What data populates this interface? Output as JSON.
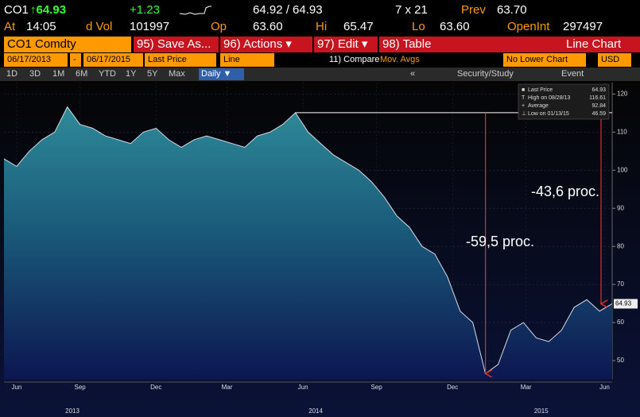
{
  "header": {
    "ticker": "CO1",
    "last": "↑64.93",
    "change": "+1.23",
    "bid_ask": "64.92 / 64.93",
    "size": "7 x 21",
    "prev_label": "Prev",
    "prev": "63.70",
    "at_label": "At",
    "time": "14:05",
    "vol_label": "d Vol",
    "vol": "101997",
    "open_label": "Op",
    "open": "63.60",
    "high_label": "Hi",
    "high": "65.47",
    "low_label": "Lo",
    "low": "63.60",
    "oi_label": "OpenInt",
    "oi": "297497"
  },
  "toolbar": {
    "security": "CO1 Comdty",
    "buttons": [
      "95) Save As...",
      "96) Actions ▾",
      "97) Edit ▾",
      "98) Table"
    ],
    "chart_kind": "Line Chart"
  },
  "settings": {
    "start": "06/17/2013",
    "dash": "-",
    "end": "06/17/2015",
    "field": "Last Price",
    "style": "Line",
    "compare": "11) Compare",
    "mov_avgs": "Mov. Avgs",
    "lower": "No Lower Chart",
    "currency": "USD"
  },
  "ranges": {
    "buttons": [
      "1D",
      "3D",
      "1M",
      "6M",
      "YTD",
      "1Y",
      "5Y",
      "Max"
    ],
    "period": "Daily ▼",
    "collapse": "«",
    "study": "Security/Study",
    "event": "Event"
  },
  "chart_data": {
    "type": "area",
    "x": [
      0.5,
      1,
      1.5,
      2,
      2.5,
      3,
      3.5,
      4,
      4.5,
      5,
      5.5,
      6,
      6.5,
      7,
      7.5,
      8,
      8.5,
      9,
      9.5,
      10,
      10.5,
      11,
      11.5,
      12,
      12.5,
      13,
      13.5,
      14,
      14.5,
      15,
      15.5,
      16,
      16.5,
      17,
      17.5,
      18,
      18.5,
      19,
      19.5,
      20,
      20.5,
      21,
      21.5,
      22,
      22.5,
      23,
      23.5,
      24,
      24.5
    ],
    "series": [
      {
        "name": "Last Price",
        "color": "#3aa0b0",
        "values": [
          103,
          101,
          105,
          108,
          110,
          116.61,
          112,
          111,
          109,
          108,
          107,
          110,
          111,
          108,
          106,
          108,
          109,
          108,
          107,
          106,
          109,
          110,
          112,
          115.1,
          110,
          107,
          104,
          102,
          100,
          97,
          93,
          88,
          85,
          80,
          78,
          72,
          63,
          60,
          46.59,
          49,
          58,
          60,
          56,
          55,
          58,
          64,
          66,
          63,
          64.93
        ]
      }
    ],
    "xlim": [
      0.5,
      24.5
    ],
    "ylim": [
      45,
      123
    ],
    "xticks": [
      {
        "value": 1,
        "label": "Jun"
      },
      {
        "value": 3.5,
        "label": "Sep"
      },
      {
        "value": 6.5,
        "label": "Dec"
      },
      {
        "value": 9.3,
        "label": "Mar"
      },
      {
        "value": 12.3,
        "label": "Jun"
      },
      {
        "value": 15.2,
        "label": "Sep"
      },
      {
        "value": 18.2,
        "label": "Dec"
      },
      {
        "value": 21.1,
        "label": "Mar"
      },
      {
        "value": 24.2,
        "label": "Jun"
      }
    ],
    "year_labels": [
      {
        "value": 3.2,
        "label": "2013"
      },
      {
        "value": 12.8,
        "label": "2014"
      },
      {
        "value": 21.7,
        "label": "2015"
      }
    ],
    "yticks": [
      50,
      60,
      70,
      80,
      90,
      100,
      110,
      120
    ],
    "grid": true,
    "stats": {
      "high": {
        "label": "High on 08/28/13",
        "value": 116.61
      },
      "average": {
        "label": "Average",
        "value": 92.84
      },
      "low": {
        "label": "Low on 01/13/15",
        "value": 46.59
      }
    },
    "annotations": [
      {
        "text": "-43,6 proc."
      },
      {
        "text": "-59,5 proc."
      }
    ]
  }
}
